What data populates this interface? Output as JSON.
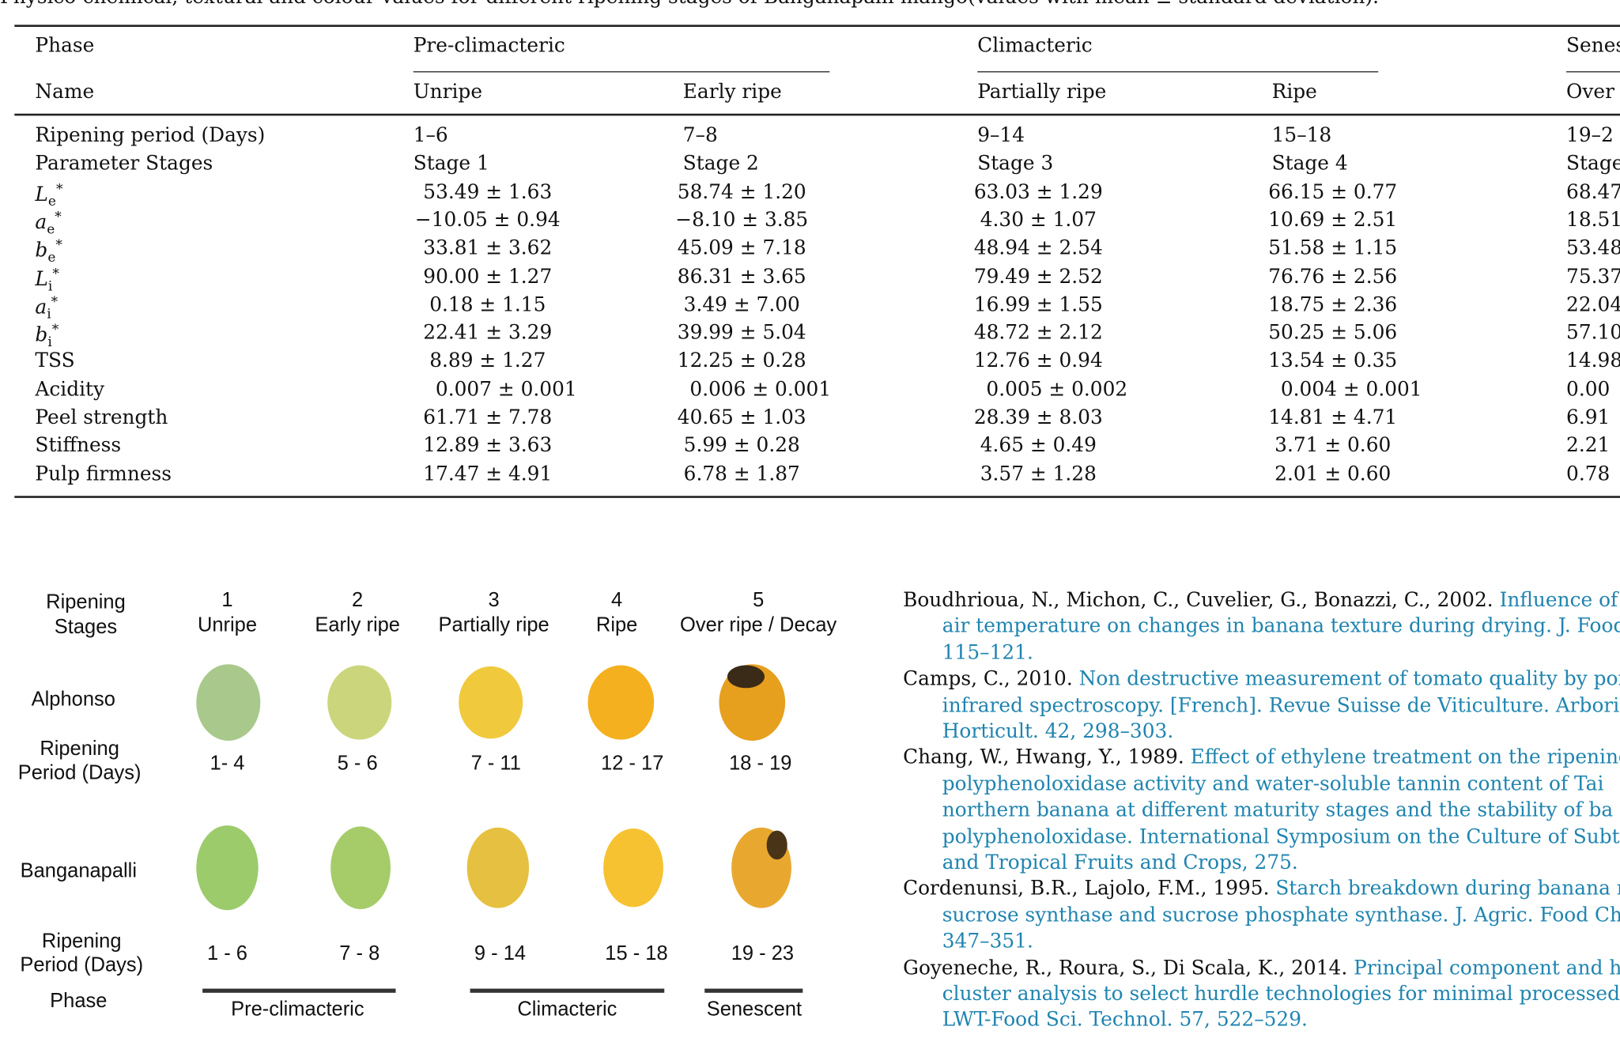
{
  "caption": "Physico-chemical, textural and colour values for different ripening stages of Banganapalli mango(values with mean ± standard deviation).",
  "table": {
    "phase_label": "Phase",
    "phases": [
      "Pre-climacteric",
      "Climacteric",
      "Senes"
    ],
    "name_label": "Name",
    "names": [
      "Unripe",
      "Early ripe",
      "Partially ripe",
      "Ripe",
      "Over"
    ],
    "rows": [
      {
        "label": "Ripening period (Days)",
        "cells": [
          "1–6",
          "7–8",
          "9–14",
          "15–18",
          "19–2"
        ]
      },
      {
        "label": "Parameter Stages",
        "cells": [
          "Stage 1",
          "Stage 2",
          "Stage 3",
          "Stage 4",
          "Stage"
        ]
      },
      {
        "label": {
          "base": "L",
          "sub": "e",
          "sup": "*"
        },
        "cells": [
          "53.49 ± 1.63",
          "58.74 ± 1.20",
          "63.03 ± 1.29",
          "66.15 ± 0.77",
          "68.47"
        ]
      },
      {
        "label": {
          "base": "a",
          "sub": "e",
          "sup": "*"
        },
        "cells": [
          "−10.05 ± 0.94",
          "−8.10 ± 3.85",
          "4.30 ± 1.07",
          "10.69 ± 2.51",
          "18.51"
        ]
      },
      {
        "label": {
          "base": "b",
          "sub": "e",
          "sup": "*"
        },
        "cells": [
          "33.81 ± 3.62",
          "45.09 ± 7.18",
          "48.94 ± 2.54",
          "51.58 ± 1.15",
          "53.48"
        ]
      },
      {
        "label": {
          "base": "L",
          "sub": "i",
          "sup": "*"
        },
        "cells": [
          "90.00 ± 1.27",
          "86.31 ± 3.65",
          "79.49 ± 2.52",
          "76.76 ± 2.56",
          "75.37"
        ]
      },
      {
        "label": {
          "base": "a",
          "sub": "i",
          "sup": "*"
        },
        "cells": [
          "0.18 ± 1.15",
          "3.49 ± 7.00",
          "16.99 ± 1.55",
          "18.75 ± 2.36",
          "22.04"
        ]
      },
      {
        "label": {
          "base": "b",
          "sub": "i",
          "sup": "*"
        },
        "cells": [
          "22.41 ± 3.29",
          "39.99 ± 5.04",
          "48.72 ± 2.12",
          "50.25 ± 5.06",
          "57.10"
        ]
      },
      {
        "label": "TSS",
        "cells": [
          "8.89 ± 1.27",
          "12.25 ± 0.28",
          "12.76 ± 0.94",
          "13.54 ± 0.35",
          "14.98"
        ]
      },
      {
        "label": "Acidity",
        "cells": [
          "0.007 ± 0.001",
          "0.006 ± 0.001",
          "0.005 ± 0.002",
          "0.004 ± 0.001",
          "0.00"
        ]
      },
      {
        "label": "Peel strength",
        "cells": [
          "61.71 ± 7.78",
          "40.65 ± 1.03",
          "28.39 ± 8.03",
          "14.81 ± 4.71",
          "6.91"
        ]
      },
      {
        "label": "Stiffness",
        "cells": [
          "12.89 ± 3.63",
          "5.99 ± 0.28",
          "4.65 ± 0.49",
          "3.71 ± 0.60",
          "2.21"
        ]
      },
      {
        "label": "Pulp firmness",
        "cells": [
          "17.47 ± 4.91",
          "6.78 ± 1.87",
          "3.57 ± 1.28",
          "2.01 ± 0.60",
          "0.78"
        ]
      }
    ]
  },
  "figure": {
    "stages_label": [
      "Ripening",
      "Stages"
    ],
    "stage_numbers": [
      "1",
      "2",
      "3",
      "4",
      "5"
    ],
    "stage_names": [
      "Unripe",
      "Early ripe",
      "Partially ripe",
      "Ripe",
      "Over ripe / Decay"
    ],
    "cultivars": [
      {
        "name": "Alphonso",
        "period_label": [
          "Ripening",
          "Period (Days)"
        ],
        "periods": [
          "1- 4",
          "5 - 6",
          "7 - 11",
          "12 - 17",
          "18 - 19"
        ]
      },
      {
        "name": "Banganapalli",
        "period_label": [
          "Ripening",
          "Period (Days)"
        ],
        "periods": [
          "1 - 6",
          "7 - 8",
          "9 - 14",
          "15 - 18",
          "19 - 23"
        ]
      }
    ],
    "phase_label": "Phase",
    "phases": [
      "Pre-climacteric",
      "Climacteric",
      "Senescent"
    ]
  },
  "references": [
    {
      "authors": "Boudhrioua, N., Michon, C., Cuvelier, G., Bonazzi, C., 2002. ",
      "lines": [
        "Influence of ri",
        "air temperature on changes in banana texture during drying. J. Food",
        "115–121."
      ]
    },
    {
      "authors": "Camps, C., 2010. ",
      "lines": [
        "Non destructive measurement of tomato quality by por",
        "infrared spectroscopy. [French]. Revue Suisse de Viticulture. Arboric",
        "Horticult. 42, 298–303."
      ]
    },
    {
      "authors": "Chang, W., Hwang, Y., 1989. ",
      "lines": [
        "Effect of ethylene treatment on the ripening",
        "polyphenoloxidase activity and water-soluble tannin content of Tai",
        "northern banana at different maturity stages and the stability of ba",
        "polyphenoloxidase. International Symposium on the Culture of Subt",
        "and Tropical Fruits and Crops, 275."
      ]
    },
    {
      "authors": "Cordenunsi, B.R., Lajolo, F.M., 1995. ",
      "lines": [
        "Starch breakdown during banana rip",
        "sucrose synthase and sucrose phosphate synthase. J. Agric. Food Che",
        "347–351."
      ]
    },
    {
      "authors": "Goyeneche, R., Roura, S., Di Scala, K., 2014. ",
      "lines": [
        "Principal component and hie",
        "cluster analysis to select hurdle technologies for minimal processed",
        "LWT-Food Sci. Technol. 57, 522–529."
      ]
    }
  ]
}
